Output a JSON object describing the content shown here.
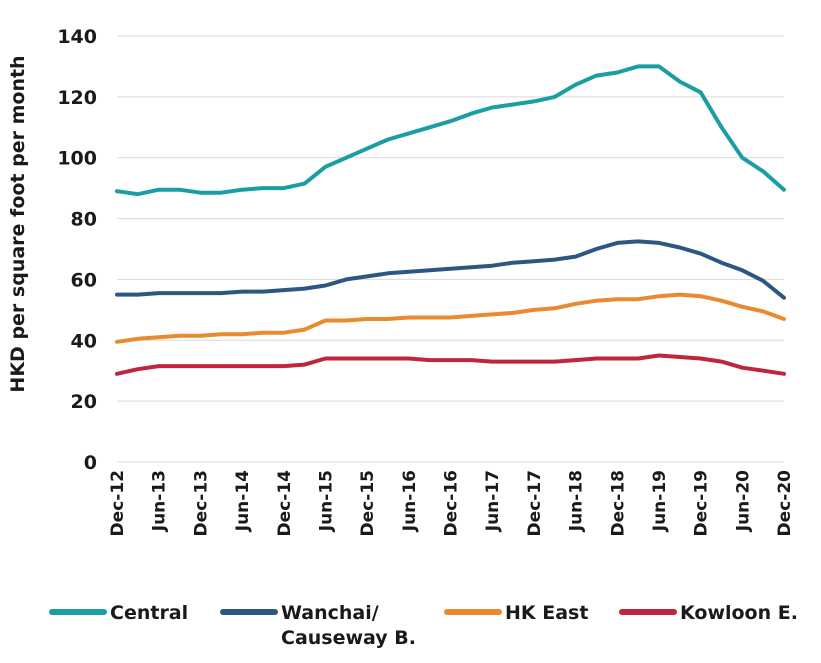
{
  "chart_data": {
    "type": "line",
    "title": "",
    "xlabel": "",
    "ylabel": "HKD per square foot per month",
    "ylim": [
      0,
      140
    ],
    "yticks": [
      0,
      20,
      40,
      60,
      80,
      100,
      120,
      140
    ],
    "grid": "horizontal",
    "legend_position": "bottom",
    "x": [
      "Dec-12",
      "Mar-13",
      "Jun-13",
      "Sep-13",
      "Dec-13",
      "Mar-14",
      "Jun-14",
      "Sep-14",
      "Dec-14",
      "Mar-15",
      "Jun-15",
      "Sep-15",
      "Dec-15",
      "Mar-16",
      "Jun-16",
      "Sep-16",
      "Dec-16",
      "Mar-17",
      "Jun-17",
      "Sep-17",
      "Dec-17",
      "Mar-18",
      "Jun-18",
      "Sep-18",
      "Dec-18",
      "Mar-19",
      "Jun-19",
      "Sep-19",
      "Dec-19",
      "Mar-20",
      "Jun-20",
      "Sep-20",
      "Dec-20"
    ],
    "xtick_labels": [
      "Dec-12",
      "Jun-13",
      "Dec-13",
      "Jun-14",
      "Dec-14",
      "Jun-15",
      "Dec-15",
      "Jun-16",
      "Dec-16",
      "Jun-17",
      "Dec-17",
      "Jun-18",
      "Dec-18",
      "Jun-19",
      "Dec-19",
      "Jun-20",
      "Dec-20"
    ],
    "series": [
      {
        "name": "Central",
        "color": "#1a9ea3",
        "values": [
          89,
          88,
          89.5,
          89.5,
          88.5,
          88.5,
          89.5,
          90,
          90,
          91.5,
          97,
          100,
          103,
          106,
          108,
          110,
          112,
          114.5,
          116.5,
          117.5,
          118.5,
          120,
          124,
          127,
          128,
          130,
          130,
          125,
          121.5,
          110,
          100,
          95.5,
          89.5
        ]
      },
      {
        "name": "Wanchai/ Causeway B.",
        "name_lines": [
          "Wanchai/",
          "Causeway B."
        ],
        "color": "#2c5782",
        "values": [
          55,
          55,
          55.5,
          55.5,
          55.5,
          55.5,
          56,
          56,
          56.5,
          57,
          58,
          60,
          61,
          62,
          62.5,
          63,
          63.5,
          64,
          64.5,
          65.5,
          66,
          66.5,
          67.5,
          70,
          72,
          72.5,
          72,
          70.5,
          68.5,
          65.5,
          63,
          59.5,
          54
        ]
      },
      {
        "name": "HK East",
        "color": "#ea8a2e",
        "values": [
          39.5,
          40.5,
          41,
          41.5,
          41.5,
          42,
          42,
          42.5,
          42.5,
          43.5,
          46.5,
          46.5,
          47,
          47,
          47.5,
          47.5,
          47.5,
          48,
          48.5,
          49,
          50,
          50.5,
          52,
          53,
          53.5,
          53.5,
          54.5,
          55,
          54.5,
          53,
          51,
          49.5,
          47
        ]
      },
      {
        "name": "Kowloon E.",
        "color": "#c0243e",
        "values": [
          29,
          30.5,
          31.5,
          31.5,
          31.5,
          31.5,
          31.5,
          31.5,
          31.5,
          32,
          34,
          34,
          34,
          34,
          34,
          33.5,
          33.5,
          33.5,
          33,
          33,
          33,
          33,
          33.5,
          34,
          34,
          34,
          35,
          34.5,
          34,
          33,
          31,
          30,
          29
        ]
      }
    ]
  }
}
